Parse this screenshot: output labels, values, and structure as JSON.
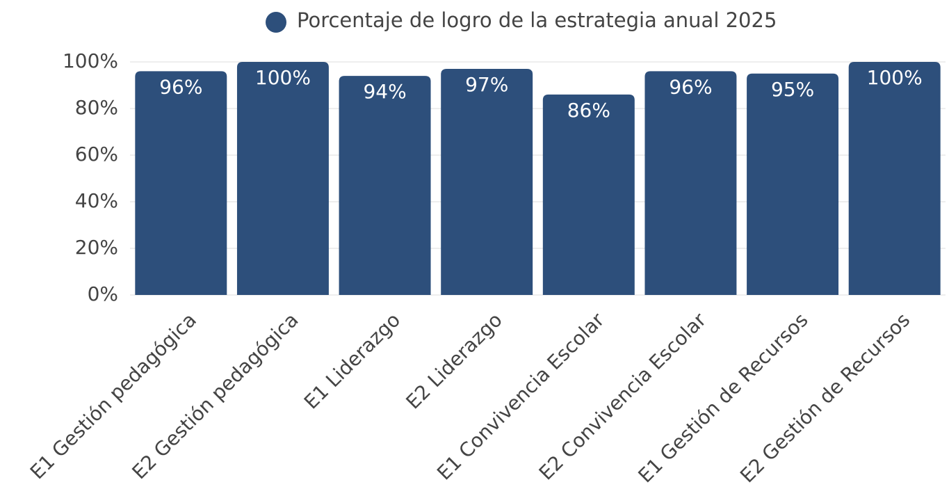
{
  "chart_data": {
    "type": "bar",
    "categories": [
      "E1 Gestión pedagógica",
      "E2 Gestión pedagógica",
      "E1 Liderazgo",
      "E2 Liderazgo",
      "E1 Convivencia Escolar",
      "E2 Convivencia Escolar",
      "E1 Gestión de Recursos",
      "E2 Gestión de Recursos"
    ],
    "series": [
      {
        "name": "Porcentaje de logro de la estrategia anual 2025",
        "color": "#2d4f7b",
        "values": [
          96,
          100,
          94,
          97,
          86,
          96,
          95,
          100
        ],
        "value_labels": [
          "96%",
          "100%",
          "94%",
          "97%",
          "86%",
          "96%",
          "95%",
          "100%"
        ]
      }
    ],
    "ylim": [
      0,
      100
    ],
    "yticks": [
      {
        "value": 0,
        "label": "0%"
      },
      {
        "value": 20,
        "label": "20%"
      },
      {
        "value": 40,
        "label": "40%"
      },
      {
        "value": 60,
        "label": "60%"
      },
      {
        "value": 80,
        "label": "80%"
      },
      {
        "value": 100,
        "label": "100%"
      }
    ],
    "grid": true,
    "legend": "top"
  }
}
